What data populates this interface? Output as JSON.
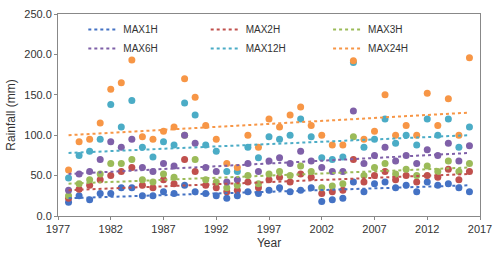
{
  "chart_data": {
    "type": "scatter",
    "xlabel": "Year",
    "ylabel": "Rainfall (mm)",
    "x": [
      1978,
      1979,
      1980,
      1981,
      1982,
      1983,
      1984,
      1985,
      1986,
      1987,
      1988,
      1989,
      1990,
      1991,
      1992,
      1993,
      1994,
      1995,
      1996,
      1997,
      1998,
      1999,
      2000,
      2001,
      2002,
      2003,
      2004,
      2005,
      2006,
      2007,
      2008,
      2009,
      2010,
      2011,
      2012,
      2013,
      2014,
      2015,
      2016
    ],
    "trend_x": [
      1978,
      2016
    ],
    "series": [
      {
        "name": "MAX1H",
        "color": "#4472c4",
        "trend": [
          22,
          38
        ],
        "values": [
          17,
          25,
          20,
          28,
          28,
          35,
          35,
          25,
          25,
          30,
          28,
          38,
          30,
          28,
          25,
          22,
          25,
          30,
          28,
          32,
          35,
          30,
          32,
          35,
          18,
          20,
          22,
          42,
          30,
          40,
          42,
          35,
          38,
          30,
          42,
          38,
          40,
          35,
          30
        ]
      },
      {
        "name": "MAX2H",
        "color": "#c0504d",
        "trend": [
          32,
          52
        ],
        "values": [
          22,
          33,
          38,
          45,
          50,
          55,
          60,
          38,
          35,
          45,
          40,
          70,
          55,
          38,
          35,
          30,
          32,
          42,
          35,
          45,
          48,
          42,
          52,
          48,
          28,
          30,
          32,
          70,
          42,
          50,
          55,
          45,
          50,
          42,
          50,
          48,
          58,
          45,
          55
        ]
      },
      {
        "name": "MAX3H",
        "color": "#9bbb59",
        "trend": [
          40,
          60
        ],
        "values": [
          25,
          40,
          45,
          52,
          65,
          65,
          70,
          45,
          42,
          52,
          48,
          100,
          70,
          45,
          42,
          35,
          38,
          50,
          40,
          52,
          55,
          50,
          62,
          55,
          35,
          37,
          40,
          98,
          50,
          60,
          65,
          52,
          58,
          50,
          62,
          55,
          68,
          55,
          65
        ]
      },
      {
        "name": "MAX6H",
        "color": "#7f60a8",
        "trend": [
          52,
          78
        ],
        "values": [
          32,
          52,
          55,
          70,
          92,
          85,
          95,
          60,
          55,
          65,
          62,
          100,
          90,
          60,
          55,
          42,
          45,
          65,
          55,
          68,
          72,
          65,
          80,
          68,
          60,
          55,
          55,
          130,
          65,
          75,
          85,
          68,
          75,
          65,
          82,
          75,
          90,
          68,
          87
        ]
      },
      {
        "name": "MAX12H",
        "color": "#4bacc6",
        "trend": [
          78,
          100
        ],
        "values": [
          47,
          75,
          80,
          95,
          138,
          110,
          143,
          85,
          73,
          92,
          88,
          140,
          125,
          88,
          80,
          55,
          55,
          85,
          72,
          98,
          95,
          100,
          120,
          98,
          72,
          70,
          73,
          190,
          85,
          95,
          120,
          90,
          100,
          88,
          120,
          100,
          120,
          85,
          110
        ]
      },
      {
        "name": "MAX24H",
        "color": "#f79646",
        "trend": [
          100,
          128
        ],
        "values": [
          57,
          92,
          95,
          115,
          157,
          165,
          193,
          98,
          95,
          105,
          110,
          170,
          147,
          112,
          95,
          65,
          60,
          100,
          85,
          120,
          110,
          125,
          135,
          112,
          100,
          88,
          88,
          192,
          95,
          105,
          150,
          100,
          112,
          100,
          152,
          112,
          145,
          100,
          196
        ]
      }
    ],
    "marker": "circle",
    "line_style": "dot",
    "xlim": [
      1977,
      2017
    ],
    "xticks": [
      1977,
      1982,
      1987,
      1992,
      1997,
      2002,
      2007,
      2012,
      2017
    ],
    "ylim": [
      0,
      250
    ],
    "yticks": [
      {
        "value": 0,
        "label": "0.0"
      },
      {
        "value": 50,
        "label": "50.0"
      },
      {
        "value": 100,
        "label": "100.0"
      },
      {
        "value": 150,
        "label": "150.0"
      },
      {
        "value": 200,
        "label": "200.0"
      },
      {
        "value": 250,
        "label": "250.0"
      }
    ],
    "grid": false,
    "legend": "top"
  }
}
